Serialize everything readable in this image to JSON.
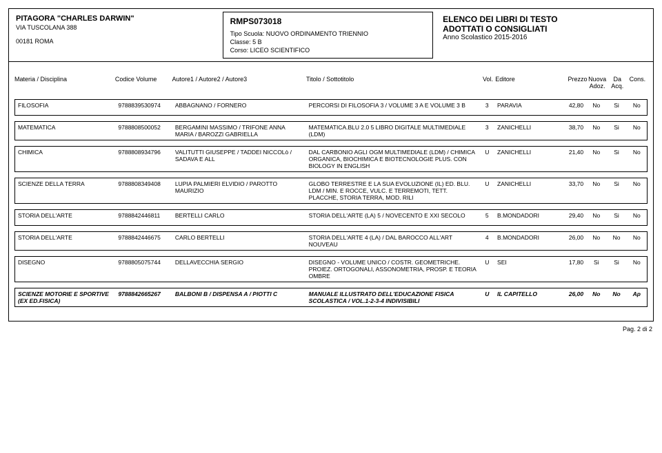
{
  "header": {
    "school_name": "PITAGORA \"CHARLES DARWIN\"",
    "address": "VIA TUSCOLANA 388",
    "city_line": "00181  ROMA",
    "code": "RMPS073018",
    "tipo_label": "Tipo Scuola:",
    "tipo_value": "NUOVO ORDINAMENTO TRIENNIO",
    "classe_label": "Classe:",
    "classe_value": "5 B",
    "corso_label": "Corso:",
    "corso_value": "LICEO SCIENTIFICO",
    "banner_title": "ELENCO DEI LIBRI DI TESTO",
    "banner_sub": "ADOTTATI O CONSIGLIATI",
    "year": "Anno Scolastico 2015-2016"
  },
  "cols": {
    "materia": "Materia / Disciplina",
    "codice": "Codice Volume",
    "autori": "Autore1 / Autore2 / Autore3",
    "titolo": "Titolo / Sottotitolo",
    "vol": "Vol.",
    "editore": "Editore",
    "prezzo": "Prezzo",
    "nuova": "Nuova Adoz.",
    "da": "Da Acq.",
    "cons": "Cons."
  },
  "rows": [
    {
      "materia": "FILOSOFIA",
      "codice": "9788839530974",
      "autori": "ABBAGNANO / FORNERO",
      "titolo": "PERCORSI DI FILOSOFIA 3 / VOLUME 3 A E VOLUME 3 B",
      "vol": "3",
      "editore": "PARAVIA",
      "prezzo": "42,80",
      "nuova": "No",
      "da": "Si",
      "cons": "No",
      "italic": false
    },
    {
      "materia": "MATEMATICA",
      "codice": "9788808500052",
      "autori": "BERGAMINI MASSIMO / TRIFONE ANNA MARIA / BAROZZI GABRIELLA",
      "titolo": "MATEMATICA.BLU 2.0 5 LIBRO DIGITALE MULTIMEDIALE (LDM)",
      "vol": "3",
      "editore": "ZANICHELLI",
      "prezzo": "38,70",
      "nuova": "No",
      "da": "Si",
      "cons": "No",
      "italic": false
    },
    {
      "materia": "CHIMICA",
      "codice": "9788808934796",
      "autori": "VALITUTTI GIUSEPPE / TADDEI NICCOLò / SADAVA E ALL",
      "titolo": "DAL CARBONIO AGLI OGM MULTIMEDIALE (LDM) / CHIMICA ORGANICA, BIOCHIMICA E BIOTECNOLOGIE PLUS. CON BIOLOGY IN ENGLISH",
      "vol": "U",
      "editore": "ZANICHELLI",
      "prezzo": "21,40",
      "nuova": "No",
      "da": "Si",
      "cons": "No",
      "italic": false
    },
    {
      "materia": "SCIENZE DELLA TERRA",
      "codice": "9788808349408",
      "autori": "LUPIA PALMIERI ELVIDIO / PAROTTO MAURIZIO",
      "titolo": "GLOBO TERRESTRE E LA SUA EVOLUZIONE (IL) ED. BLU. LDM / MIN. E ROCCE, VULC. E TERREMOTI, TETT. PLACCHE, STORIA TERRA, MOD. RILI",
      "vol": "U",
      "editore": "ZANICHELLI",
      "prezzo": "33,70",
      "nuova": "No",
      "da": "Si",
      "cons": "No",
      "italic": false
    },
    {
      "materia": "STORIA DELL'ARTE",
      "codice": "9788842446811",
      "autori": "BERTELLI CARLO",
      "titolo": "STORIA DELL'ARTE (LA) 5 / NOVECENTO E XXI SECOLO",
      "vol": "5",
      "editore": "B.MONDADORI",
      "prezzo": "29,40",
      "nuova": "No",
      "da": "Si",
      "cons": "No",
      "italic": false
    },
    {
      "materia": "STORIA DELL'ARTE",
      "codice": "9788842446675",
      "autori": "CARLO BERTELLI",
      "titolo": "STORIA DELL'ARTE 4 (LA) / DAL BAROCCO ALL'ART NOUVEAU",
      "vol": "4",
      "editore": "B.MONDADORI",
      "prezzo": "26,00",
      "nuova": "No",
      "da": "No",
      "cons": "No",
      "italic": false
    },
    {
      "materia": "DISEGNO",
      "codice": "9788805075744",
      "autori": "DELLAVECCHIA SERGIO",
      "titolo": "DISEGNO - VOLUME UNICO / COSTR. GEOMETRICHE. PROIEZ. ORTOGONALI, ASSONOMETRIA, PROSP. E TEORIA OMBRE",
      "vol": "U",
      "editore": "SEI",
      "prezzo": "17,80",
      "nuova": "Si",
      "da": "Si",
      "cons": "No",
      "italic": false
    },
    {
      "materia": "SCIENZE MOTORIE E SPORTIVE (EX ED.FISICA)",
      "codice": "9788842665267",
      "autori": "BALBONI B / DISPENSA A / PIOTTI C",
      "titolo": "MANUALE ILLUSTRATO DELL'EDUCAZIONE FISICA SCOLASTICA / VOL.1-2-3-4 INDIVISIBILI",
      "vol": "U",
      "editore": "IL CAPITELLO",
      "prezzo": "26,00",
      "nuova": "No",
      "da": "No",
      "cons": "Ap",
      "italic": true
    }
  ],
  "footer": {
    "page": "Pag. 2 di 2"
  }
}
